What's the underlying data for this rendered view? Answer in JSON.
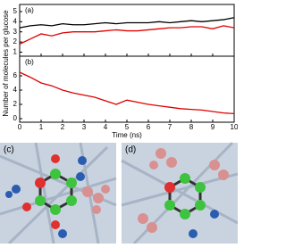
{
  "chart_data": [
    {
      "type": "line",
      "label": "(a)",
      "ylabel": "Number of molecules per glucose",
      "x": [
        0,
        0.5,
        1,
        1.5,
        2,
        2.5,
        3,
        3.5,
        4,
        4.5,
        5,
        5.5,
        6,
        6.5,
        7,
        7.5,
        8,
        8.5,
        9,
        9.5,
        10
      ],
      "series": [
        {
          "color": "#000000",
          "values": [
            3.4,
            3.6,
            3.7,
            3.6,
            3.8,
            3.7,
            3.7,
            3.8,
            3.9,
            3.8,
            3.9,
            3.9,
            3.9,
            4.0,
            3.9,
            4.0,
            4.1,
            4.0,
            4.1,
            4.2,
            4.4
          ]
        },
        {
          "color": "#e00000",
          "values": [
            1.8,
            2.3,
            2.8,
            2.6,
            2.9,
            3.0,
            3.0,
            3.0,
            3.1,
            3.2,
            3.1,
            3.1,
            3.2,
            3.3,
            3.4,
            3.4,
            3.5,
            3.5,
            3.3,
            3.6,
            3.4
          ]
        }
      ],
      "xlim": [
        0,
        10
      ],
      "xticks": [
        0,
        1,
        2,
        3,
        4,
        5,
        6,
        7,
        8,
        9,
        10
      ],
      "ylim": [
        0.6,
        5.7
      ],
      "yticks": [
        1,
        2,
        3,
        4,
        5
      ]
    },
    {
      "type": "line",
      "label": "(b)",
      "xlabel": "Time (ns)",
      "x": [
        0,
        0.5,
        1,
        1.5,
        2,
        2.5,
        3,
        3.5,
        4,
        4.5,
        5,
        5.5,
        6,
        6.5,
        7,
        7.5,
        8,
        8.5,
        9,
        9.5,
        10
      ],
      "series": [
        {
          "color": "#e00000",
          "values": [
            6.5,
            5.8,
            5.0,
            4.6,
            4.0,
            3.6,
            3.3,
            3.0,
            2.5,
            2.0,
            2.6,
            2.3,
            2.0,
            1.8,
            1.6,
            1.4,
            1.3,
            1.2,
            1.0,
            0.8,
            0.7
          ]
        }
      ],
      "xlim": [
        0,
        10
      ],
      "xticks": [
        0,
        1,
        2,
        3,
        4,
        5,
        6,
        7,
        8,
        9,
        10
      ],
      "ylim": [
        -0.5,
        8.75
      ],
      "yticks": [
        0,
        2,
        4,
        6
      ]
    }
  ],
  "images": [
    {
      "label": "(c)"
    },
    {
      "label": "(d)"
    }
  ]
}
